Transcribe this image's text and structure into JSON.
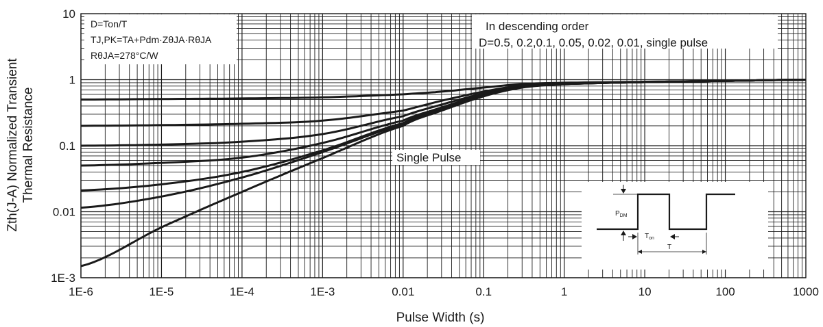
{
  "chart_data": {
    "type": "line",
    "title": "",
    "xlabel": "Pulse Width (s)",
    "ylabel_line1": "Zth(J-A) Normalized Transient",
    "ylabel_line2": "Thermal Resistance",
    "x_scale": "log",
    "y_scale": "log",
    "xlim": [
      1e-06,
      1000
    ],
    "ylim": [
      0.001,
      10
    ],
    "grid": true,
    "x_ticks": [
      {
        "value": 1e-06,
        "label": "1E-6"
      },
      {
        "value": 1e-05,
        "label": "1E-5"
      },
      {
        "value": 0.0001,
        "label": "1E-4"
      },
      {
        "value": 0.001,
        "label": "1E-3"
      },
      {
        "value": 0.01,
        "label": "0.01"
      },
      {
        "value": 0.1,
        "label": "0.1"
      },
      {
        "value": 1,
        "label": "1"
      },
      {
        "value": 10,
        "label": "10"
      },
      {
        "value": 100,
        "label": "100"
      },
      {
        "value": 1000,
        "label": "1000"
      }
    ],
    "y_ticks": [
      {
        "value": 0.001,
        "label": "1E-3"
      },
      {
        "value": 0.01,
        "label": "0.01"
      },
      {
        "value": 0.1,
        "label": "0.1"
      },
      {
        "value": 1,
        "label": "1"
      },
      {
        "value": 10,
        "label": "10"
      }
    ],
    "x": [
      1e-06,
      1e-05,
      0.0001,
      0.001,
      0.01,
      0.03,
      0.1,
      0.3,
      1,
      10,
      100,
      1000
    ],
    "series": [
      {
        "values": [
          0.5,
          0.51,
          0.52,
          0.54,
          0.6,
          0.66,
          0.76,
          0.86,
          0.9,
          0.93,
          0.96,
          1.0
        ]
      },
      {
        "values": [
          0.2,
          0.205,
          0.215,
          0.24,
          0.34,
          0.48,
          0.66,
          0.82,
          0.88,
          0.92,
          0.96,
          1.0
        ]
      },
      {
        "values": [
          0.1,
          0.104,
          0.115,
          0.15,
          0.28,
          0.42,
          0.62,
          0.8,
          0.87,
          0.92,
          0.96,
          1.0
        ]
      },
      {
        "values": [
          0.05,
          0.055,
          0.066,
          0.11,
          0.24,
          0.38,
          0.6,
          0.78,
          0.86,
          0.92,
          0.96,
          1.0
        ]
      },
      {
        "values": [
          0.021,
          0.026,
          0.04,
          0.085,
          0.22,
          0.36,
          0.58,
          0.77,
          0.86,
          0.92,
          0.96,
          1.0
        ]
      },
      {
        "values": [
          0.0115,
          0.017,
          0.033,
          0.08,
          0.21,
          0.35,
          0.57,
          0.77,
          0.86,
          0.92,
          0.96,
          1.0
        ]
      },
      {
        "values": [
          0.0015,
          0.0058,
          0.02,
          0.065,
          0.2,
          0.34,
          0.56,
          0.76,
          0.86,
          0.92,
          0.96,
          1.0
        ]
      }
    ],
    "annotations": {
      "formula_line1": "D=Ton/T",
      "formula_line2": "TJ,PK=TA+Pdm·ZθJA·RθJA",
      "formula_line3": "RθJA=278°C/W",
      "order_line1": "In descending order",
      "order_line2": "D=0.5, 0.2,0.1, 0.05, 0.02, 0.01, single pulse",
      "single_pulse": "Single Pulse",
      "inset_pdm": "P",
      "inset_pdm_sub": "DM",
      "inset_ton": "T",
      "inset_ton_sub": "on",
      "inset_t": "T"
    },
    "line_color": "#1a1a1a"
  }
}
